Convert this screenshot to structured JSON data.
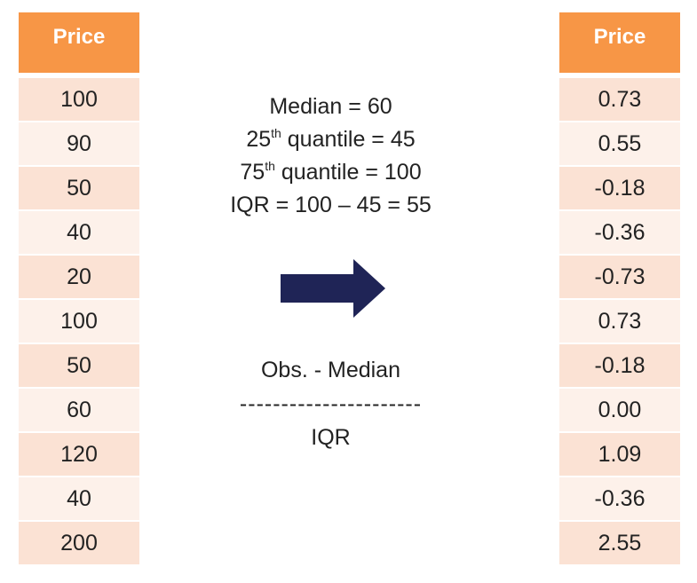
{
  "left_table": {
    "header": "Price",
    "values": [
      "100",
      "90",
      "50",
      "40",
      "20",
      "100",
      "50",
      "60",
      "120",
      "40",
      "200"
    ]
  },
  "right_table": {
    "header": "Price",
    "values": [
      "0.73",
      "0.55",
      "-0.18",
      "-0.36",
      "-0.73",
      "0.73",
      "-0.18",
      "0.00",
      "1.09",
      "-0.36",
      "2.55"
    ]
  },
  "stats": {
    "median": "Median = 60",
    "q25_prefix": "25",
    "q25_sup": "th",
    "q25_suffix": " quantile = 45",
    "q75_prefix": "75",
    "q75_sup": "th",
    "q75_suffix": " quantile = 100",
    "iqr": "IQR = 100 – 45 = 55"
  },
  "formula": {
    "numerator": "Obs. - Median",
    "divider": "----------------------",
    "denominator": "IQR"
  },
  "colors": {
    "header": "#f79646",
    "row_odd": "#fbe2d4",
    "row_even": "#fdf1ea",
    "arrow": "#1f2456"
  },
  "icons": {
    "arrow": "right-arrow-icon"
  }
}
